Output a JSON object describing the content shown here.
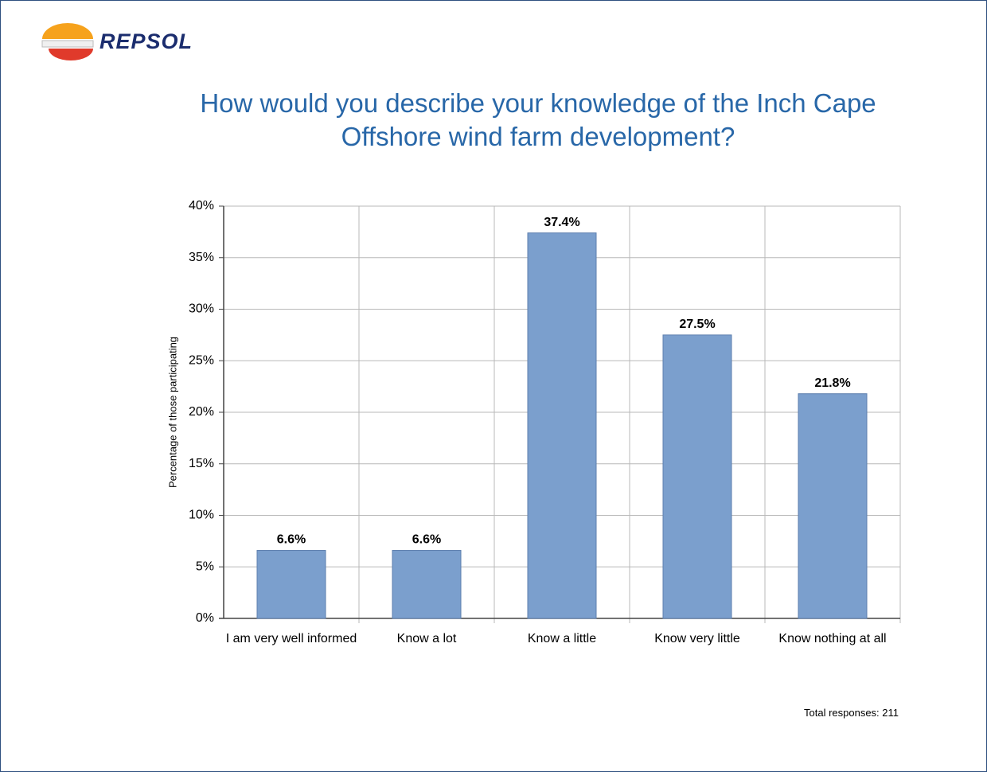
{
  "logo": "REPSOL",
  "note": "Total responses: 211",
  "chart_data": {
    "type": "bar",
    "title": "How would you describe your knowledge of the Inch Cape Offshore wind farm development?",
    "ylabel": "Percentage of those participating",
    "categories": [
      "I am very well informed",
      "Know a lot",
      "Know a little",
      "Know very little",
      "Know nothing at all"
    ],
    "values": [
      6.6,
      6.6,
      37.4,
      27.5,
      21.8
    ],
    "value_labels": [
      "6.6%",
      "6.6%",
      "37.4%",
      "27.5%",
      "21.8%"
    ],
    "color": "#7b9fcd",
    "ylim": [
      0,
      40
    ],
    "yticks": [
      {
        "value": 0,
        "label": "0%"
      },
      {
        "value": 5,
        "label": "5%"
      },
      {
        "value": 10,
        "label": "10%"
      },
      {
        "value": 15,
        "label": "15%"
      },
      {
        "value": 20,
        "label": "20%"
      },
      {
        "value": 25,
        "label": "25%"
      },
      {
        "value": 30,
        "label": "30%"
      },
      {
        "value": 35,
        "label": "35%"
      },
      {
        "value": 40,
        "label": "40%"
      }
    ],
    "grid": true
  }
}
